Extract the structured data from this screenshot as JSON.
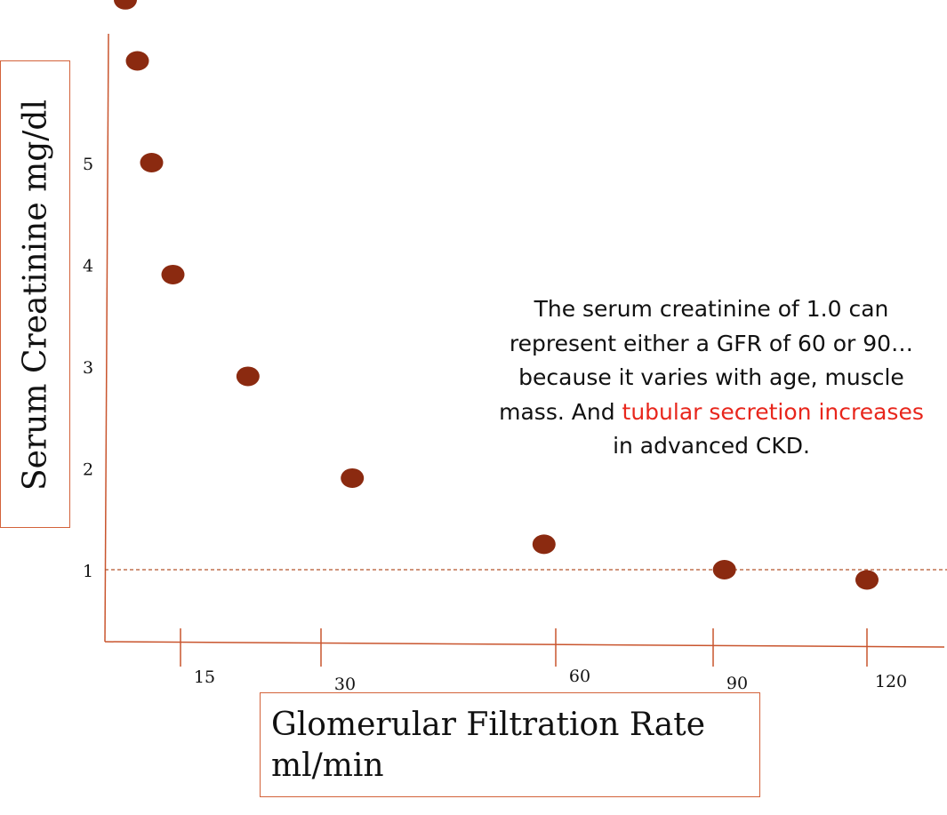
{
  "chart_data": {
    "type": "scatter",
    "xlabel": [
      "Glomerular Filtration Rate",
      "ml/min"
    ],
    "ylabel": "Serum Creatinine mg/dl",
    "xticks": [
      15,
      30,
      60,
      90,
      120
    ],
    "yticks": [
      1,
      2,
      3,
      4,
      5
    ],
    "ylim": [
      0.3,
      6.2
    ],
    "reference_line": {
      "y": 1,
      "style": "dashed"
    },
    "points": [
      {
        "x": 2.6,
        "y": 6.6
      },
      {
        "x": 5.3,
        "y": 6.0
      },
      {
        "x": 8.5,
        "y": 5.0
      },
      {
        "x": 13.3,
        "y": 3.9
      },
      {
        "x": 22.2,
        "y": 2.9
      },
      {
        "x": 34.0,
        "y": 1.9
      },
      {
        "x": 58.5,
        "y": 1.25
      },
      {
        "x": 92.2,
        "y": 1.0
      },
      {
        "x": 120.0,
        "y": 0.9
      }
    ],
    "point_color": "#8b2a10",
    "axis_color": "#c9552e",
    "grid": false
  },
  "annotation": {
    "before": "The serum creatinine of 1.0 can represent either a GFR of 60 or 90… because it varies with age, muscle mass. And ",
    "highlight": "tubular secretion increases",
    "after": " in advanced CKD.",
    "highlight_color": "#e8261c"
  }
}
